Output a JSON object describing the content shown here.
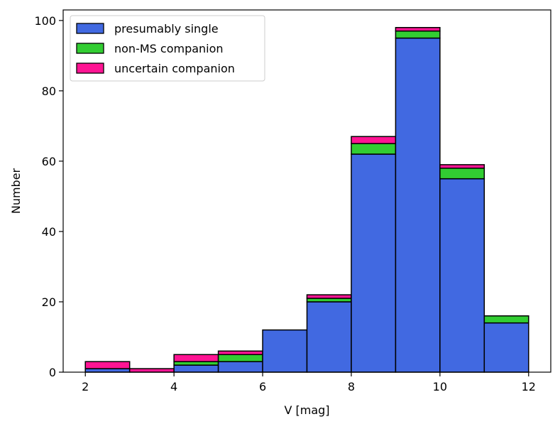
{
  "chart_data": {
    "type": "bar",
    "stacked": true,
    "xlabel": "V [mag]",
    "ylabel": "Number",
    "xlim": [
      1.5,
      12.5
    ],
    "ylim": [
      0,
      103
    ],
    "bin_edges": [
      2,
      3,
      4,
      5,
      6,
      7,
      8,
      9,
      10,
      11,
      12
    ],
    "x_ticks": [
      2,
      4,
      6,
      8,
      10,
      12
    ],
    "y_ticks": [
      0,
      20,
      40,
      60,
      80,
      100
    ],
    "grid": false,
    "legend_position": "top-left",
    "series": [
      {
        "name": "presumably single",
        "color": "#4169e1",
        "values": [
          1,
          0,
          2,
          3,
          12,
          20,
          62,
          95,
          55,
          14
        ]
      },
      {
        "name": "non-MS companion",
        "color": "#32cd32",
        "values": [
          0,
          0,
          1,
          2,
          0,
          1,
          3,
          2,
          3,
          2
        ]
      },
      {
        "name": "uncertain companion",
        "color": "#ff1493",
        "values": [
          2,
          1,
          2,
          1,
          0,
          1,
          2,
          1,
          1,
          0
        ]
      }
    ]
  }
}
